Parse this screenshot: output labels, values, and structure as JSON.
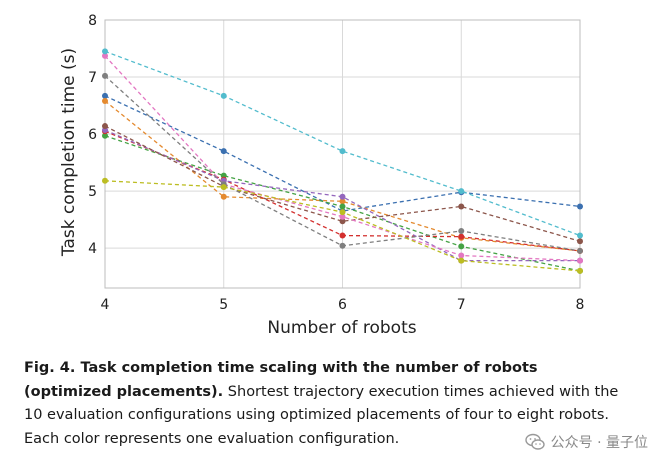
{
  "chart_data": {
    "type": "line",
    "title": "",
    "xlabel": "Number of robots",
    "ylabel": "Task completion time (s)",
    "x": [
      4,
      5,
      6,
      7,
      8
    ],
    "xlim": [
      4,
      8
    ],
    "ylim": [
      3.3,
      8
    ],
    "yticks": [
      4,
      5,
      6,
      7,
      8
    ],
    "grid": true,
    "legend": "none",
    "series": [
      {
        "color": "#3b70b0",
        "values": [
          6.67,
          5.7,
          4.65,
          4.98,
          4.73
        ]
      },
      {
        "color": "#e48a2f",
        "values": [
          6.58,
          4.9,
          4.82,
          4.18,
          3.95
        ]
      },
      {
        "color": "#44a244",
        "values": [
          5.97,
          5.27,
          4.73,
          4.03,
          3.6
        ]
      },
      {
        "color": "#d3302f",
        "values": [
          6.05,
          5.2,
          4.22,
          4.2,
          3.95
        ]
      },
      {
        "color": "#9467bd",
        "values": [
          6.07,
          5.18,
          4.9,
          3.78,
          3.78
        ]
      },
      {
        "color": "#8c564b",
        "values": [
          6.14,
          5.08,
          4.47,
          4.73,
          4.12
        ]
      },
      {
        "color": "#e377c2",
        "values": [
          7.37,
          5.12,
          4.55,
          3.87,
          3.78
        ]
      },
      {
        "color": "#7f7f7f",
        "values": [
          7.02,
          5.12,
          4.04,
          4.3,
          3.95
        ]
      },
      {
        "color": "#bcbd22",
        "values": [
          5.18,
          5.07,
          4.63,
          3.78,
          3.6
        ]
      },
      {
        "color": "#52bccd",
        "values": [
          7.45,
          6.67,
          5.7,
          5.0,
          4.22
        ]
      }
    ]
  },
  "caption": {
    "bold": "Fig. 4. Task completion time scaling with the number of robots (optimized placements).",
    "text": " Shortest trajectory execution times achieved with the 10 evaluation configurations using optimized placements of four to eight robots. Each color represents one evaluation configuration."
  },
  "watermark": {
    "text": "公众号 · 量子位",
    "icon": "wechat-icon"
  }
}
